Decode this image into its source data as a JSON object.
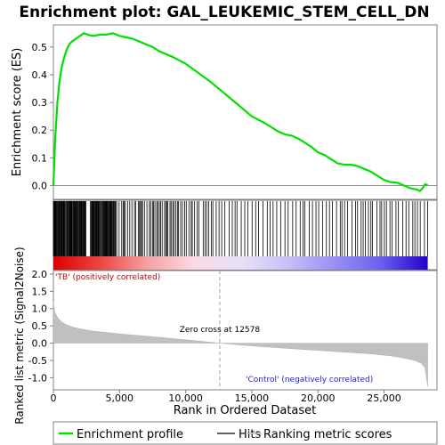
{
  "chart_data": {
    "type": "line",
    "title": "Enrichment plot: GAL_LEUKEMIC_STEM_CELL_DN",
    "xlabel": "Rank in Ordered Dataset",
    "x_ticks": [
      "0",
      "5,000",
      "10,000",
      "15,000",
      "20,000",
      "25,000"
    ],
    "x_range": [
      0,
      29000
    ],
    "es_panel": {
      "ylabel": "Enrichment score (ES)",
      "ylim": [
        -0.05,
        0.58
      ],
      "y_ticks": [
        "0.0",
        "0.1",
        "0.2",
        "0.3",
        "0.4",
        "0.5"
      ],
      "grid": false,
      "series": {
        "name": "Enrichment profile",
        "color": "#00e000",
        "x": [
          0,
          150,
          300,
          450,
          600,
          800,
          1000,
          1200,
          1400,
          1700,
          2000,
          2300,
          2600,
          3000,
          3500,
          4000,
          4500,
          5000,
          5500,
          6000,
          6500,
          7000,
          7500,
          8000,
          9000,
          10000,
          11000,
          12000,
          13000,
          14000,
          15000,
          16000,
          17000,
          17500,
          18000,
          18500,
          19000,
          19500,
          20000,
          20500,
          21000,
          21500,
          22000,
          22500,
          23000,
          23500,
          24000,
          24500,
          25000,
          25500,
          26000,
          26500,
          27000,
          27500,
          27700,
          27900,
          28100,
          28300
        ],
        "y": [
          0.0,
          0.18,
          0.3,
          0.37,
          0.42,
          0.46,
          0.49,
          0.51,
          0.52,
          0.53,
          0.54,
          0.55,
          0.545,
          0.54,
          0.545,
          0.545,
          0.55,
          0.54,
          0.535,
          0.53,
          0.52,
          0.51,
          0.5,
          0.485,
          0.465,
          0.44,
          0.405,
          0.37,
          0.33,
          0.29,
          0.25,
          0.225,
          0.195,
          0.185,
          0.18,
          0.17,
          0.155,
          0.14,
          0.12,
          0.11,
          0.095,
          0.08,
          0.075,
          0.075,
          0.07,
          0.06,
          0.05,
          0.035,
          0.02,
          0.012,
          0.01,
          0.0,
          -0.01,
          -0.015,
          -0.02,
          -0.01,
          0.005,
          0.0
        ]
      }
    },
    "hits_panel": {
      "legend_name": "Hits",
      "dense_ranges": [
        [
          0,
          2500
        ],
        [
          2800,
          4700
        ]
      ],
      "medium_ranges": [
        [
          4700,
          10500
        ]
      ],
      "sparse_ranges": [
        [
          10500,
          28300
        ]
      ]
    },
    "color_bar": {
      "gradient": [
        "#dd0000",
        "#ee4444",
        "#f5a0a0",
        "#fbd8e6",
        "#e8e0f8",
        "#c8c0f8",
        "#9a90f4",
        "#6a60ee",
        "#2200cc"
      ],
      "zero_cross_rank": 12578
    },
    "metric_panel": {
      "ylabel": "Ranked list metric (Signal2Noise)",
      "ylim": [
        -1.35,
        2.1
      ],
      "y_ticks": [
        "2.0",
        "1.5",
        "1.0",
        "0.5",
        "0.0",
        "-0.5",
        "-1.0"
      ],
      "fill_color": "#c0c0c0",
      "x": [
        0,
        100,
        300,
        600,
        1000,
        1500,
        2000,
        3000,
        5000,
        8000,
        10000,
        12578,
        15000,
        18000,
        20000,
        22000,
        24000,
        25500,
        26500,
        27300,
        27800,
        28100,
        28300
      ],
      "y": [
        1.2,
        0.9,
        0.75,
        0.62,
        0.53,
        0.46,
        0.42,
        0.35,
        0.27,
        0.17,
        0.1,
        0.0,
        -0.08,
        -0.16,
        -0.21,
        -0.26,
        -0.31,
        -0.37,
        -0.43,
        -0.5,
        -0.58,
        -0.72,
        -1.25
      ],
      "zero_cross_label": "Zero cross at 12578",
      "positive_label": "'TB' (positively correlated)",
      "negative_label": "'Control' (negatively correlated)"
    },
    "legend": {
      "placement": "bottom",
      "items": [
        {
          "name": "Enrichment profile",
          "color": "#00e000"
        },
        {
          "name": "Hits",
          "color": "#000000"
        },
        {
          "name": "Ranking metric scores",
          "color": "#c0c0c0"
        }
      ]
    }
  }
}
